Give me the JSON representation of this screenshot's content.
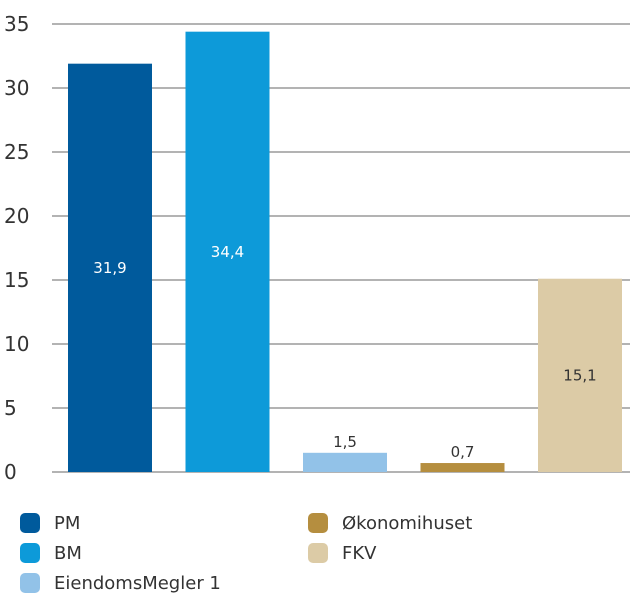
{
  "chart_data": {
    "type": "bar",
    "categories": [
      "PM",
      "BM",
      "EiendomsMegler 1",
      "Økonomihuset",
      "FKV"
    ],
    "values": [
      31.9,
      34.4,
      1.5,
      0.7,
      15.1
    ],
    "value_labels": [
      "31,9",
      "34,4",
      "1,5",
      "0,7",
      "15,1"
    ],
    "colors": [
      "#005a9c",
      "#0d9ad9",
      "#92c2e8",
      "#b58e3f",
      "#dccba6"
    ],
    "value_label_colors": [
      "#ffffff",
      "#ffffff",
      "#333333",
      "#333333",
      "#333333"
    ],
    "value_label_inside": [
      true,
      true,
      false,
      false,
      true
    ],
    "ylim": [
      0,
      35
    ],
    "yticks": [
      "0",
      "5",
      "10",
      "15",
      "20",
      "25",
      "30",
      "35"
    ],
    "grid": true,
    "legend_position": "bottom",
    "legend_labels": [
      "PM",
      "BM",
      "EiendomsMegler 1",
      "Økonomihuset",
      "FKV"
    ]
  }
}
